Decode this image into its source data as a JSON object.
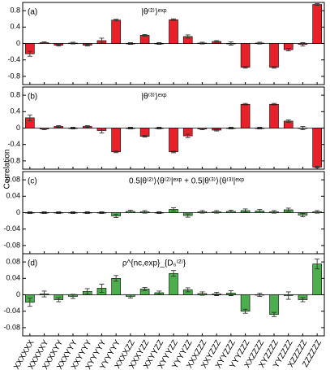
{
  "ylabel": "Correlation",
  "chart_data": [
    {
      "type": "bar",
      "label": "(a)",
      "title": "|θ⁽²⁾⟩ᵉˣᵖ",
      "color": "#e8202a",
      "ylim": [
        -1,
        1
      ],
      "yticks": [
        0.8,
        0.4,
        0,
        -0.4,
        -0.8
      ],
      "values": [
        -0.25,
        0.02,
        -0.04,
        0.01,
        -0.04,
        0.07,
        0.57,
        0.0,
        0.2,
        0.0,
        0.58,
        0.17,
        0.01,
        0.05,
        0.0,
        -0.58,
        0.01,
        -0.58,
        -0.15,
        -0.02,
        0.95
      ],
      "errors": [
        0.06,
        0.02,
        0.02,
        0.02,
        0.02,
        0.06,
        0.02,
        0.02,
        0.02,
        0.02,
        0.02,
        0.04,
        0.02,
        0.02,
        0.04,
        0.02,
        0.02,
        0.02,
        0.03,
        0.04,
        0.02
      ]
    },
    {
      "type": "bar",
      "label": "(b)",
      "title": "|θ⁽³⁾⟩ᵉˣᵖ",
      "color": "#e8202a",
      "ylim": [
        -1,
        1
      ],
      "yticks": [
        0.8,
        0.4,
        0,
        -0.4,
        -0.8
      ],
      "values": [
        0.25,
        -0.02,
        0.04,
        0.0,
        0.04,
        -0.06,
        -0.58,
        0.0,
        -0.2,
        0.0,
        -0.58,
        -0.19,
        -0.02,
        -0.05,
        0.0,
        0.58,
        0.0,
        0.58,
        0.17,
        0.0,
        -0.95
      ],
      "errors": [
        0.07,
        0.02,
        0.02,
        0.02,
        0.02,
        0.06,
        0.02,
        0.02,
        0.02,
        0.02,
        0.02,
        0.04,
        0.02,
        0.02,
        0.02,
        0.02,
        0.02,
        0.02,
        0.03,
        0.04,
        0.02
      ]
    },
    {
      "type": "bar",
      "label": "(c)",
      "title": "0.5|θ⁽²⁾⟩⟨θ⁽²⁾|ᵉˣᵖ + 0.5|θ⁽³⁾⟩⟨θ⁽³⁾|ᵉˣᵖ",
      "color": "#4cae4c",
      "ylim": [
        -0.1,
        0.1
      ],
      "yticks": [
        0.08,
        0.04,
        0,
        -0.04,
        -0.08
      ],
      "values": [
        0.0,
        0.0,
        0.0,
        0.0,
        0.0,
        0.0,
        -0.008,
        0.003,
        0.002,
        0.0,
        0.008,
        -0.007,
        0.002,
        0.002,
        0.003,
        0.005,
        0.004,
        0.002,
        0.007,
        -0.006,
        0.002
      ],
      "errors": [
        0.002,
        0.002,
        0.002,
        0.002,
        0.002,
        0.002,
        0.004,
        0.003,
        0.003,
        0.002,
        0.004,
        0.004,
        0.003,
        0.003,
        0.003,
        0.004,
        0.004,
        0.003,
        0.004,
        0.004,
        0.003
      ]
    },
    {
      "type": "bar",
      "label": "(d)",
      "title": "ρ^{nc,exp}_{D₆⁽²⁾}",
      "color": "#4cae4c",
      "ylim": [
        -0.1,
        0.1
      ],
      "yticks": [
        0.08,
        0.04,
        0,
        -0.04,
        -0.08
      ],
      "categories": [
        "XXXXXX",
        "XXXXXY",
        "XXXXYY",
        "XXXYYY",
        "XXYYYY",
        "XYYYYY",
        "YYYYYY",
        "XXXXZZ",
        "XXXYZZ",
        "XXYYZZ",
        "XYYYZZ",
        "YYYYZZ",
        "XXXZZZ",
        "XXYZZZ",
        "XYYZZZ",
        "YYYZZZ",
        "XXZZZZ",
        "XYZZZZ",
        "YYZZZZ",
        "XZZZZZ",
        "ZZZZZZ"
      ],
      "values": [
        -0.018,
        0.002,
        -0.012,
        -0.004,
        0.008,
        0.016,
        0.04,
        -0.004,
        0.014,
        0.005,
        0.052,
        0.012,
        0.003,
        0.002,
        0.004,
        -0.04,
        0.0,
        -0.048,
        -0.002,
        -0.012,
        0.075
      ],
      "errors": [
        0.01,
        0.007,
        0.005,
        0.005,
        0.007,
        0.01,
        0.007,
        0.004,
        0.004,
        0.004,
        0.007,
        0.005,
        0.004,
        0.004,
        0.006,
        0.005,
        0.004,
        0.005,
        0.009,
        0.005,
        0.012
      ]
    }
  ]
}
